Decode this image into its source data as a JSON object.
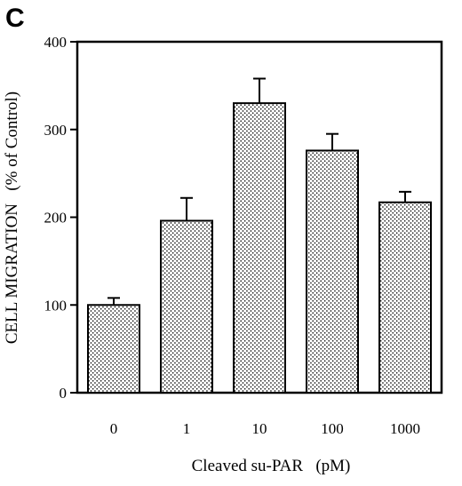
{
  "panel_label": "C",
  "chart_data": {
    "type": "bar",
    "categories": [
      "0",
      "1",
      "10",
      "100",
      "1000"
    ],
    "values": [
      100,
      196,
      330,
      276,
      217
    ],
    "errors": [
      8,
      26,
      28,
      19,
      12
    ],
    "title": "",
    "xlabel": "Cleaved su-PAR   (pM)",
    "ylabel": "CELL MIGRATION   (% of Control)",
    "ylim": [
      0,
      400
    ],
    "yticks": [
      0,
      100,
      200,
      300,
      400
    ],
    "ytick_labels": [
      "0",
      "100",
      "200",
      "300",
      "400"
    ],
    "grid": false,
    "legend": "none",
    "bar_fill": "stippled",
    "colors": {
      "bar_fill": "#ffffff",
      "stipple": "#000000",
      "axis": "#000000"
    }
  }
}
